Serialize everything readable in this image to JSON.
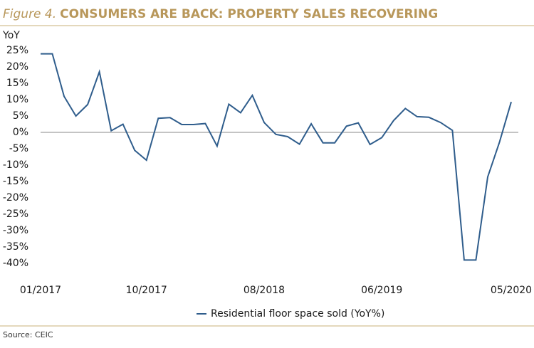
{
  "chart_data": {
    "type": "line",
    "title_label": "Figure 4.",
    "title": "CONSUMERS ARE BACK: PROPERTY SALES RECOVERING",
    "y_axis_label": "YoY",
    "source": "Source: CEIC",
    "categories": [
      "01/2017",
      null,
      null,
      null,
      null,
      null,
      null,
      null,
      null,
      "10/2017",
      null,
      null,
      null,
      null,
      null,
      null,
      null,
      null,
      null,
      "08/2018",
      null,
      null,
      null,
      null,
      null,
      null,
      null,
      null,
      null,
      "06/2019",
      null,
      null,
      null,
      null,
      null,
      null,
      null,
      null,
      null,
      null,
      "05/2020"
    ],
    "series": [
      {
        "name": "Residential floor space sold (YoY%)",
        "color": "#2f5d8c",
        "values": [
          24,
          24,
          11,
          5,
          8.5,
          18.5,
          0.5,
          2.5,
          -5.5,
          -8.5,
          4.3,
          4.5,
          2.4,
          2.4,
          2.7,
          -4.2,
          8.6,
          6,
          11.3,
          3,
          -0.6,
          -1.3,
          -3.6,
          2.6,
          -3.2,
          -3.2,
          1.9,
          2.9,
          -3.7,
          -1.6,
          3.6,
          7.3,
          4.8,
          4.6,
          3,
          0.6,
          -39,
          -39,
          -13.6,
          -3,
          9.3
        ]
      }
    ],
    "ylim": [
      -40,
      25
    ],
    "yticks": [
      {
        "value": -40,
        "label": "-40%"
      },
      {
        "value": -35,
        "label": "-35%"
      },
      {
        "value": -30,
        "label": "-30%"
      },
      {
        "value": -25,
        "label": "-25%"
      },
      {
        "value": -20,
        "label": "-20%"
      },
      {
        "value": -15,
        "label": "-15%"
      },
      {
        "value": -10,
        "label": "-10%"
      },
      {
        "value": -5,
        "label": "-5%"
      },
      {
        "value": 0,
        "label": "0%"
      },
      {
        "value": 5,
        "label": "5%"
      },
      {
        "value": 10,
        "label": "10%"
      },
      {
        "value": 15,
        "label": "15%"
      },
      {
        "value": 20,
        "label": "20%"
      },
      {
        "value": 25,
        "label": "25%"
      }
    ],
    "zero_line": true
  }
}
